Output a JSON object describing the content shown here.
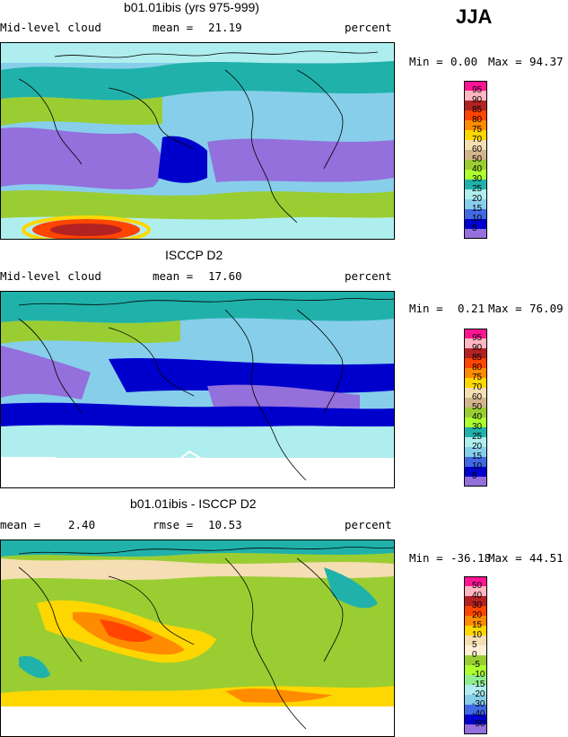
{
  "season": "JJA",
  "panels": [
    {
      "title": "b01.01ibis (yrs 975-999)",
      "left_label": "Mid-level cloud",
      "stat1_label": "mean =",
      "stat1_value": "21.19",
      "stat2_label": "",
      "stat2_value": "",
      "units": "percent",
      "min_label": "Min =",
      "min_value": "0.00",
      "max_label": "Max =",
      "max_value": "94.37"
    },
    {
      "title": "ISCCP D2",
      "left_label": "Mid-level cloud",
      "stat1_label": "mean =",
      "stat1_value": "17.60",
      "stat2_label": "",
      "stat2_value": "",
      "units": "percent",
      "min_label": "Min =",
      "min_value": "0.21",
      "max_label": "Max =",
      "max_value": "76.09"
    },
    {
      "title": "b01.01ibis - ISCCP D2",
      "left_label": "",
      "stat1_label": "mean =",
      "stat1_value": "2.40",
      "stat2_label": "rmse =",
      "stat2_value": "10.53",
      "units": "percent",
      "min_label": "Min =",
      "min_value": "-36.18",
      "max_label": "Max =",
      "max_value": "44.51"
    }
  ],
  "chart_data": [
    {
      "type": "heatmap",
      "title": "b01.01ibis (yrs 975-999)",
      "variable": "Mid-level cloud",
      "units": "percent",
      "mean": 21.19,
      "min": 0.0,
      "max": 94.37,
      "colorbar": {
        "levels": [
          "95",
          "90",
          "85",
          "80",
          "75",
          "70",
          "60",
          "50",
          "40",
          "30",
          "25",
          "20",
          "15",
          "10",
          "5"
        ],
        "colors": [
          "#ff1493",
          "#ffb6c1",
          "#b22222",
          "#ff4500",
          "#ff8c00",
          "#ffd700",
          "#f5deb3",
          "#d2b48c",
          "#9acd32",
          "#adff2f",
          "#20b2aa",
          "#afeeee",
          "#87ceeb",
          "#4169e1",
          "#0000cd",
          "#9370db"
        ]
      }
    },
    {
      "type": "heatmap",
      "title": "ISCCP D2",
      "variable": "Mid-level cloud",
      "units": "percent",
      "mean": 17.6,
      "min": 0.21,
      "max": 76.09,
      "colorbar": {
        "levels": [
          "95",
          "90",
          "85",
          "80",
          "75",
          "70",
          "60",
          "50",
          "40",
          "30",
          "25",
          "20",
          "15",
          "10",
          "5"
        ],
        "colors": [
          "#ff1493",
          "#ffb6c1",
          "#b22222",
          "#ff4500",
          "#ff8c00",
          "#ffd700",
          "#f5deb3",
          "#d2b48c",
          "#9acd32",
          "#adff2f",
          "#20b2aa",
          "#afeeee",
          "#87ceeb",
          "#4169e1",
          "#0000cd",
          "#9370db"
        ]
      }
    },
    {
      "type": "heatmap",
      "title": "b01.01ibis - ISCCP D2",
      "units": "percent",
      "mean": 2.4,
      "rmse": 10.53,
      "min": -36.18,
      "max": 44.51,
      "colorbar": {
        "levels": [
          "50",
          "40",
          "30",
          "20",
          "15",
          "10",
          "5",
          "0",
          "-5",
          "-10",
          "-15",
          "-20",
          "-30",
          "-40",
          "-50"
        ],
        "colors": [
          "#ff1493",
          "#ffb6c1",
          "#b22222",
          "#ff4500",
          "#ff8c00",
          "#ffd700",
          "#f5deb3",
          "#ffefd5",
          "#9acd32",
          "#adff2f",
          "#90ee90",
          "#afeeee",
          "#87ceeb",
          "#4169e1",
          "#0000cd",
          "#9370db"
        ]
      }
    }
  ]
}
